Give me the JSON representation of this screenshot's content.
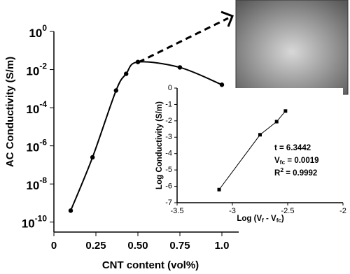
{
  "chart_data": [
    {
      "type": "line",
      "x_label": "CNT content (vol%)",
      "y_label": "AC Conductivity (S/m)",
      "x": [
        0.1,
        0.23,
        0.37,
        0.43,
        0.5,
        0.75,
        1.0
      ],
      "series": [
        {
          "color": "#000000",
          "values": [
            4e-10,
            2.5e-07,
            0.0008,
            0.006,
            0.025,
            0.013,
            0.0016
          ]
        }
      ],
      "xlim": [
        0,
        1.1
      ],
      "xticks": [
        0,
        0.25,
        {
          "value": 0.5,
          "label": "0.50"
        },
        0.75,
        {
          "value": 1,
          "label": "1.0"
        }
      ],
      "ylim": [
        3e-11,
        1
      ],
      "log_y": true,
      "yticks": [
        {
          "value": 1,
          "label": "10",
          "exponent": "0"
        },
        {
          "value": 0.01,
          "label": "10",
          "exponent": "-2"
        },
        {
          "value": 0.0001,
          "label": "10",
          "exponent": "-4"
        },
        {
          "value": 1e-06,
          "label": "10",
          "exponent": "-6"
        },
        {
          "value": 1e-08,
          "label": "10",
          "exponent": "-8"
        },
        {
          "value": 1e-10,
          "label": "10",
          "exponent": "-10"
        }
      ]
    },
    {
      "type": "line",
      "x_label": [
        "Log (V",
        "f",
        " - V",
        "fc",
        ")"
      ],
      "y_label": "Log Conductivity (S/m)",
      "x": [
        -3.12,
        -2.75,
        -2.6,
        -2.52
      ],
      "series": [
        {
          "color": "#000000",
          "values": [
            -6.2,
            -2.85,
            -2.05,
            -1.4
          ]
        }
      ],
      "xlim": [
        -3.5,
        -2
      ],
      "xticks": [
        -3.5,
        -3,
        -2.5,
        -2
      ],
      "ylim": [
        -7,
        0
      ],
      "yticks": [
        0,
        -1,
        -2,
        -3,
        -4,
        -5,
        -6,
        -7
      ],
      "annotations": [
        {
          "text": "t = 6.3442"
        },
        {
          "text": "V",
          "sub": "fc",
          "after": " = 0.0019"
        },
        {
          "text": "R",
          "sup": "2",
          "after": " = 0.9992"
        }
      ]
    }
  ]
}
